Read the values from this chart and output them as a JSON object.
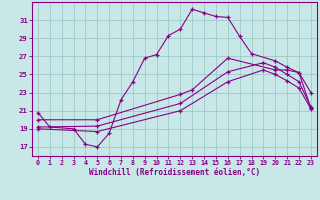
{
  "background_color": "#c8e8e8",
  "grid_color": "#a0c8c8",
  "line_color": "#880088",
  "xlabel": "Windchill (Refroidissement éolien,°C)",
  "ylabel_ticks": [
    17,
    19,
    21,
    23,
    25,
    27,
    29,
    31
  ],
  "xlim": [
    -0.5,
    23.5
  ],
  "ylim": [
    16.0,
    33.0
  ],
  "xticks": [
    0,
    1,
    2,
    3,
    4,
    5,
    6,
    7,
    8,
    9,
    10,
    11,
    12,
    13,
    14,
    15,
    16,
    17,
    18,
    19,
    20,
    21,
    22,
    23
  ],
  "curve1_x": [
    0,
    1,
    3,
    4,
    5,
    6,
    7,
    8,
    9,
    10,
    11,
    12,
    13,
    14,
    15,
    16,
    17,
    18,
    20,
    21,
    22,
    23
  ],
  "curve1_y": [
    20.8,
    19.2,
    19.0,
    17.3,
    17.0,
    18.5,
    22.2,
    24.2,
    26.8,
    27.2,
    29.3,
    30.0,
    32.2,
    31.8,
    31.4,
    31.3,
    29.2,
    27.3,
    26.5,
    25.8,
    25.2,
    23.0
  ],
  "curve2_x": [
    0,
    5,
    12,
    13,
    16,
    20,
    21,
    22,
    23
  ],
  "curve2_y": [
    20.0,
    20.0,
    22.8,
    23.3,
    26.8,
    25.5,
    25.5,
    25.2,
    21.3
  ],
  "curve3_x": [
    0,
    5,
    12,
    16,
    19,
    20,
    21,
    22,
    23
  ],
  "curve3_y": [
    19.2,
    19.3,
    21.8,
    25.3,
    26.3,
    25.8,
    25.0,
    24.2,
    21.4
  ],
  "curve4_x": [
    0,
    5,
    12,
    16,
    19,
    20,
    21,
    22,
    23
  ],
  "curve4_y": [
    19.0,
    18.7,
    21.0,
    24.2,
    25.5,
    25.0,
    24.3,
    23.5,
    21.2
  ]
}
